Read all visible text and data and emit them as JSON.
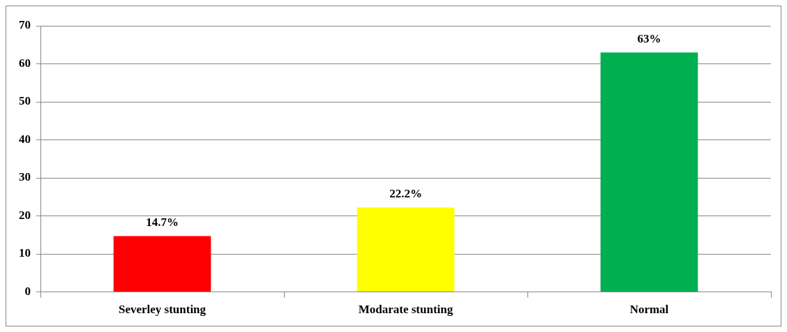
{
  "chart_data": {
    "type": "bar",
    "categories": [
      "Severley stunting",
      "Modarate stunting",
      "Normal"
    ],
    "values": [
      14.7,
      22.2,
      63
    ],
    "colors": [
      "#ff0000",
      "#ffff00",
      "#00b050"
    ],
    "value_labels": [
      "14.7%",
      "22.2%",
      "63%"
    ],
    "ylim": [
      0,
      70
    ],
    "yticks": [
      0,
      10,
      20,
      30,
      40,
      50,
      60,
      70
    ],
    "grid": "y",
    "legend": false
  }
}
